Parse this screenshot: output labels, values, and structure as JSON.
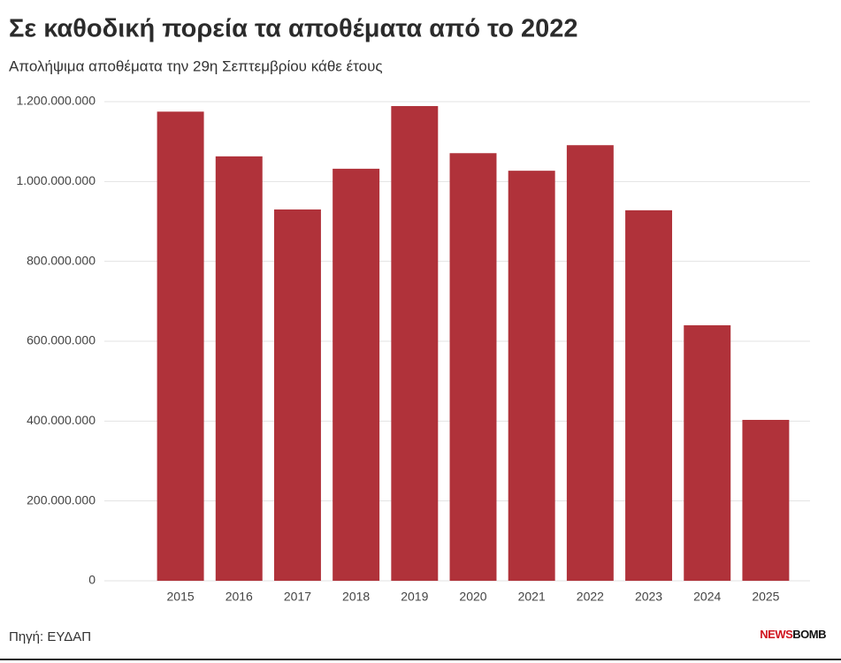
{
  "chart_data": {
    "type": "bar",
    "title": "Σε καθοδική πορεία τα αποθέματα από το 2022",
    "subtitle": "Απολήψιμα αποθέματα την 29η Σεπτεμβρίου κάθε έτους",
    "source": "Πηγή: ΕΥΔΑΠ",
    "brand": [
      "NEWS",
      "BOMB"
    ],
    "categories": [
      "2015",
      "2016",
      "2017",
      "2018",
      "2019",
      "2020",
      "2021",
      "2022",
      "2023",
      "2024",
      "2025"
    ],
    "values": [
      1175000000,
      1063000000,
      930000000,
      1032000000,
      1189000000,
      1071000000,
      1027000000,
      1091000000,
      928000000,
      640000000,
      403000000
    ],
    "color": "#b0323a",
    "ylim": [
      0,
      1200000000
    ],
    "yticks": [
      0,
      {
        "value": 200000000,
        "label": "200.000.000"
      },
      {
        "value": 400000000,
        "label": "400.000.000"
      },
      {
        "value": 600000000,
        "label": "600.000.000"
      },
      {
        "value": 800000000,
        "label": "800.000.000"
      },
      {
        "value": 1000000000,
        "label": "1.000.000.000"
      },
      {
        "value": 1200000000,
        "label": "1.200.000.000"
      }
    ],
    "grid": true
  }
}
